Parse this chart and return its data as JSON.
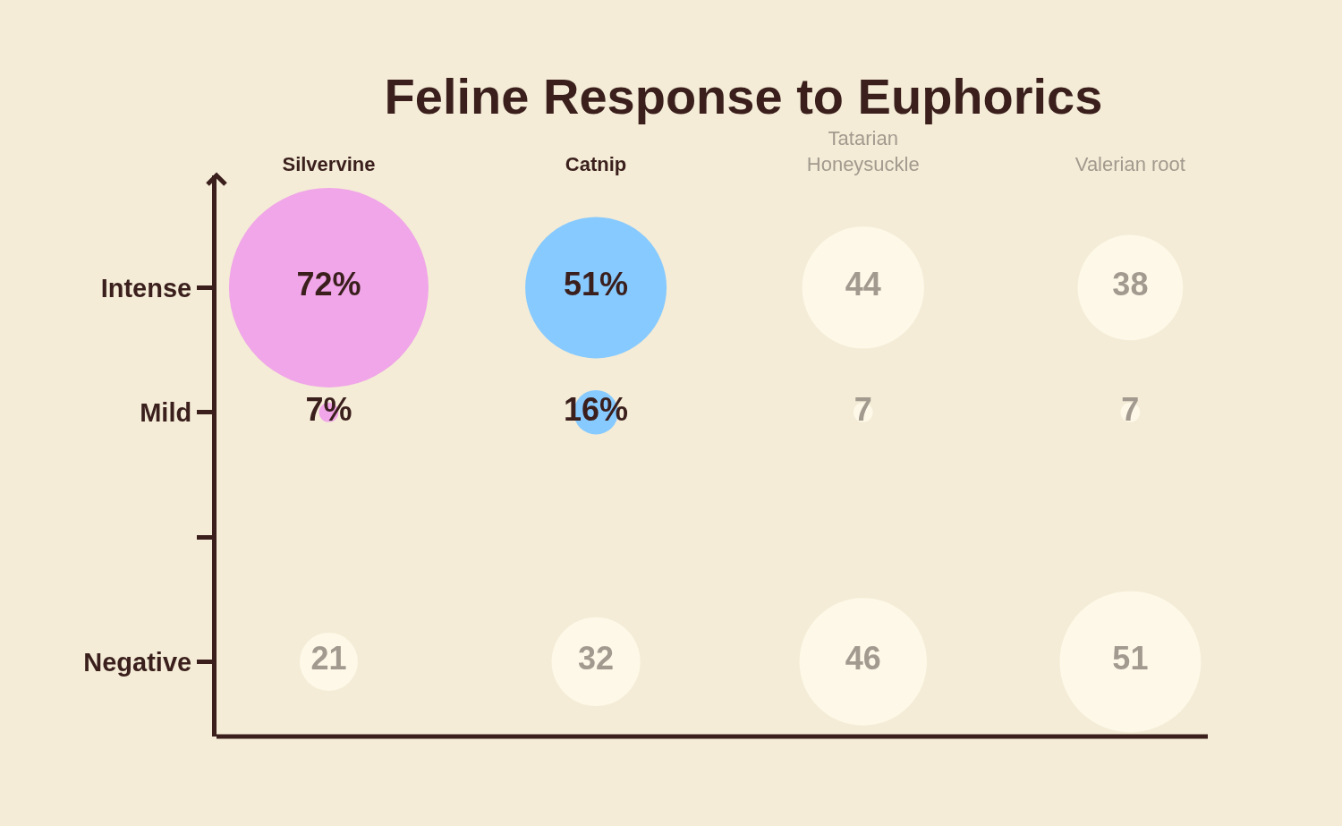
{
  "chart_data": {
    "type": "other",
    "title": "Feline Response to Euphorics",
    "categories": [
      "Silvervine",
      "Catnip",
      "Tatarian Honeysuckle",
      "Valerian root"
    ],
    "y_categories": [
      "Intense",
      "Mild",
      null,
      "Negative"
    ],
    "series": [
      {
        "values": [
          72,
          51,
          44,
          38
        ],
        "colors": [
          "#f0a6e8",
          "#87caff",
          "#fdf8e8",
          "#fdf8e8"
        ],
        "value_labels": [
          "72%",
          "51%",
          "44",
          "38"
        ]
      },
      {
        "values": [
          7,
          16,
          7,
          7
        ],
        "colors": [
          "#f0a6e8",
          "#87caff",
          "#fdf8e8",
          "#fdf8e8"
        ],
        "value_labels": [
          "7%",
          "16%",
          "7",
          "7"
        ]
      },
      {
        "values": [
          21,
          32,
          46,
          51
        ],
        "colors": [
          "#fdf8e8",
          "#fdf8e8",
          "#fdf8e8",
          "#fdf8e8"
        ],
        "value_labels": [
          "21",
          "32",
          "46",
          "51"
        ]
      }
    ]
  }
}
